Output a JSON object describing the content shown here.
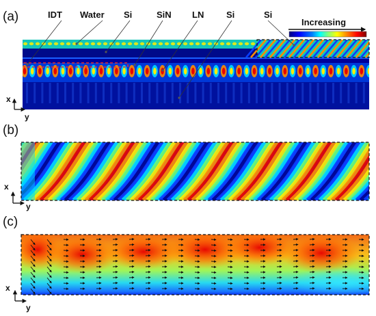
{
  "figure": {
    "panels": [
      {
        "id": "a",
        "label": "(a)"
      },
      {
        "id": "b",
        "label": "(b)"
      },
      {
        "id": "c",
        "label": "(c)"
      }
    ],
    "layer_labels": [
      "IDT",
      "Water",
      "Si",
      "SiN",
      "LN",
      "Si",
      "Si"
    ],
    "colorbar": {
      "title": "Increasing",
      "colors": [
        "#00007f",
        "#0000ff",
        "#0080ff",
        "#00ffff",
        "#80ff80",
        "#ffff00",
        "#ff8000",
        "#ff0000",
        "#7f0000"
      ]
    },
    "axes": {
      "x_label": "x",
      "y_label": "y"
    },
    "colors": {
      "deep_blue": "#00008f",
      "blue": "#0a3cff",
      "cyan": "#00d7ff",
      "green": "#6eff70",
      "yellow": "#ffee00",
      "orange": "#ff8c00",
      "red": "#e80000",
      "dark_red": "#8a0000",
      "idt_marker": "#e83030",
      "arrow": "#111111"
    }
  }
}
